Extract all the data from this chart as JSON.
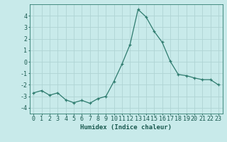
{
  "x": [
    0,
    1,
    2,
    3,
    4,
    5,
    6,
    7,
    8,
    9,
    10,
    11,
    12,
    13,
    14,
    15,
    16,
    17,
    18,
    19,
    20,
    21,
    22,
    23
  ],
  "y": [
    -2.7,
    -2.5,
    -2.9,
    -2.7,
    -3.3,
    -3.55,
    -3.35,
    -3.6,
    -3.2,
    -3.0,
    -1.7,
    -0.2,
    1.5,
    4.55,
    3.9,
    2.65,
    1.7,
    0.05,
    -1.1,
    -1.2,
    -1.4,
    -1.55,
    -1.55,
    -2.0
  ],
  "line_color": "#2e7b6e",
  "marker": "+",
  "marker_size": 3.5,
  "linewidth": 0.9,
  "background_color": "#c8eaea",
  "grid_color": "#b0d4d4",
  "axis_color": "#2e7b6e",
  "tick_color": "#1a5a50",
  "xlabel": "Humidex (Indice chaleur)",
  "xlabel_fontsize": 6.5,
  "xlim": [
    -0.5,
    23.5
  ],
  "ylim": [
    -4.5,
    5.0
  ],
  "yticks": [
    -4,
    -3,
    -2,
    -1,
    0,
    1,
    2,
    3,
    4
  ],
  "xticks": [
    0,
    1,
    2,
    3,
    4,
    5,
    6,
    7,
    8,
    9,
    10,
    11,
    12,
    13,
    14,
    15,
    16,
    17,
    18,
    19,
    20,
    21,
    22,
    23
  ],
  "tick_fontsize": 6.0
}
